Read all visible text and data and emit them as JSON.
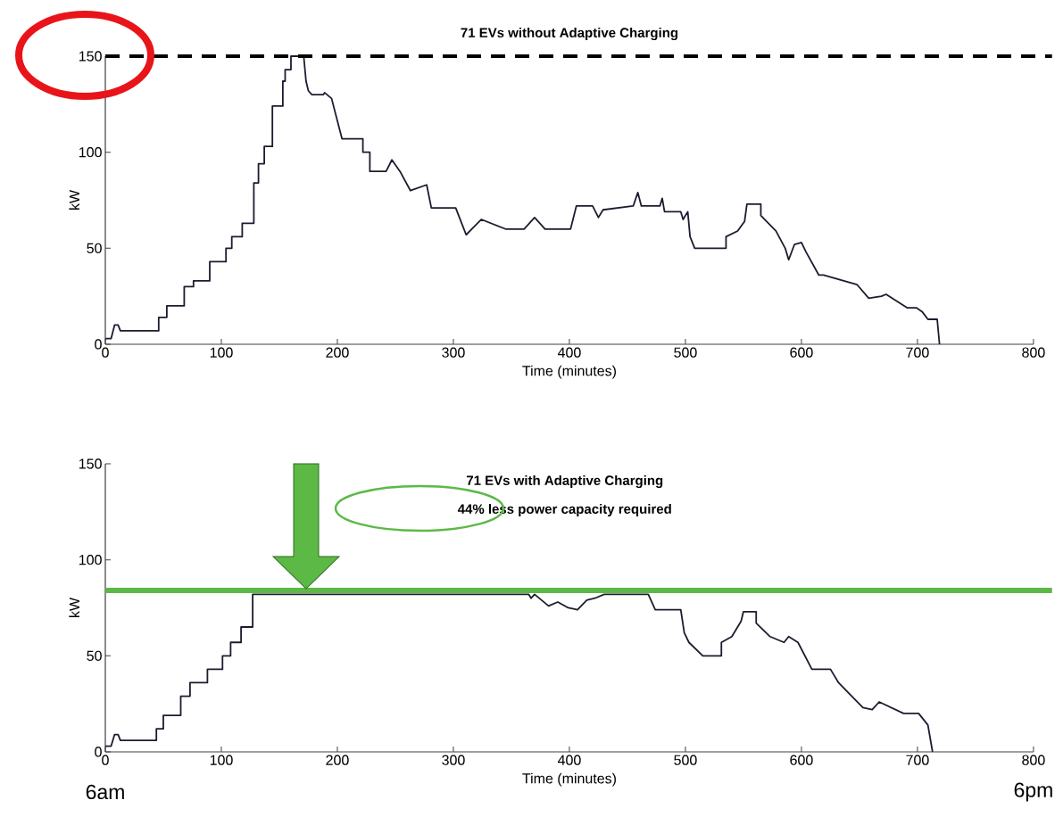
{
  "chart_data": [
    {
      "type": "line",
      "title": "71 EVs without Adaptive Charging",
      "xlabel": "Time (minutes)",
      "ylabel": "kW",
      "x": [
        0,
        5,
        8,
        11,
        13,
        46,
        46,
        53,
        53,
        68,
        68,
        76,
        76,
        90,
        90,
        104,
        104,
        109,
        109,
        118,
        118,
        128,
        128,
        132,
        132,
        137,
        137,
        144,
        144,
        153,
        153,
        155,
        155,
        160,
        160,
        171,
        173,
        175,
        178,
        188,
        189,
        195,
        204,
        222,
        222,
        228,
        228,
        242,
        247,
        254,
        263,
        277,
        281,
        302,
        311,
        324,
        345,
        361,
        370,
        379,
        401,
        406,
        420,
        425,
        429,
        455,
        459,
        462,
        478,
        480,
        482,
        496,
        498,
        502,
        504,
        508,
        535,
        535,
        545,
        551,
        553,
        565,
        565,
        578,
        586,
        589,
        594,
        600,
        604,
        615,
        619,
        648,
        658,
        669,
        673,
        691,
        699,
        704,
        709,
        717,
        719
      ],
      "values": [
        3,
        3,
        10,
        10,
        7,
        7,
        14,
        14,
        20,
        20,
        30,
        30,
        33,
        33,
        43,
        43,
        50,
        50,
        56,
        56,
        63,
        63,
        84,
        84,
        94,
        94,
        103,
        103,
        124,
        124,
        137,
        137,
        143,
        143,
        150,
        150,
        137,
        132,
        130,
        130,
        131,
        128,
        107,
        107,
        100,
        100,
        90,
        90,
        96,
        90,
        80,
        83,
        71,
        71,
        57,
        65,
        60,
        60,
        66,
        60,
        60,
        72,
        72,
        66,
        70,
        72,
        79,
        72,
        72,
        76,
        69,
        69,
        65,
        69,
        56,
        50,
        50,
        56,
        59,
        64,
        73,
        73,
        67,
        59,
        50,
        44,
        52,
        53,
        48,
        36,
        36,
        31,
        24,
        25,
        26,
        19,
        19,
        17,
        13,
        13,
        0
      ],
      "color": "#1c1c30",
      "xlim": [
        0,
        800
      ],
      "xticks": [
        0,
        100,
        200,
        300,
        400,
        500,
        600,
        700,
        800
      ],
      "ylim": [
        0,
        150
      ],
      "yticks": [
        0,
        50,
        100,
        150
      ],
      "ref_lines": [
        {
          "axis": "y",
          "value": 150,
          "color": "#000000",
          "line_style": "dashed"
        }
      ]
    },
    {
      "type": "line",
      "title": "71 EVs with Adaptive Charging",
      "subtitle": "44% less power capacity required",
      "xlabel": "Time (minutes)",
      "ylabel": "kW",
      "x": [
        0,
        5,
        8,
        11,
        13,
        44,
        44,
        50,
        50,
        65,
        65,
        73,
        73,
        88,
        88,
        101,
        101,
        108,
        108,
        117,
        117,
        127,
        127,
        365,
        367,
        370,
        376,
        382,
        390,
        399,
        407,
        415,
        422,
        430,
        468,
        474,
        496,
        499,
        503,
        515,
        531,
        531,
        540,
        548,
        550,
        561,
        561,
        573,
        585,
        589,
        597,
        609,
        625,
        632,
        640,
        653,
        661,
        667,
        688,
        701,
        709,
        713
      ],
      "values": [
        3,
        3,
        9,
        9,
        6,
        6,
        12,
        12,
        19,
        19,
        29,
        29,
        36,
        36,
        43,
        43,
        50,
        50,
        57,
        57,
        65,
        65,
        82,
        82,
        80,
        82,
        79,
        76,
        78,
        75,
        74,
        79,
        80,
        82,
        82,
        74,
        74,
        62,
        57,
        50,
        50,
        57,
        60,
        68,
        73,
        73,
        67,
        60,
        57,
        60,
        57,
        43,
        43,
        36,
        31,
        23,
        22,
        26,
        20,
        20,
        14,
        0
      ],
      "color": "#1c1c30",
      "xlim": [
        0,
        800
      ],
      "xticks": [
        0,
        100,
        200,
        300,
        400,
        500,
        600,
        700,
        800
      ],
      "ylim": [
        0,
        150
      ],
      "yticks": [
        0,
        50,
        100,
        150
      ],
      "ref_lines": [
        {
          "axis": "y",
          "value": 84,
          "color": "#5cb946",
          "line_style": "solid"
        }
      ],
      "annotations": [
        "6am",
        "6pm"
      ]
    }
  ]
}
